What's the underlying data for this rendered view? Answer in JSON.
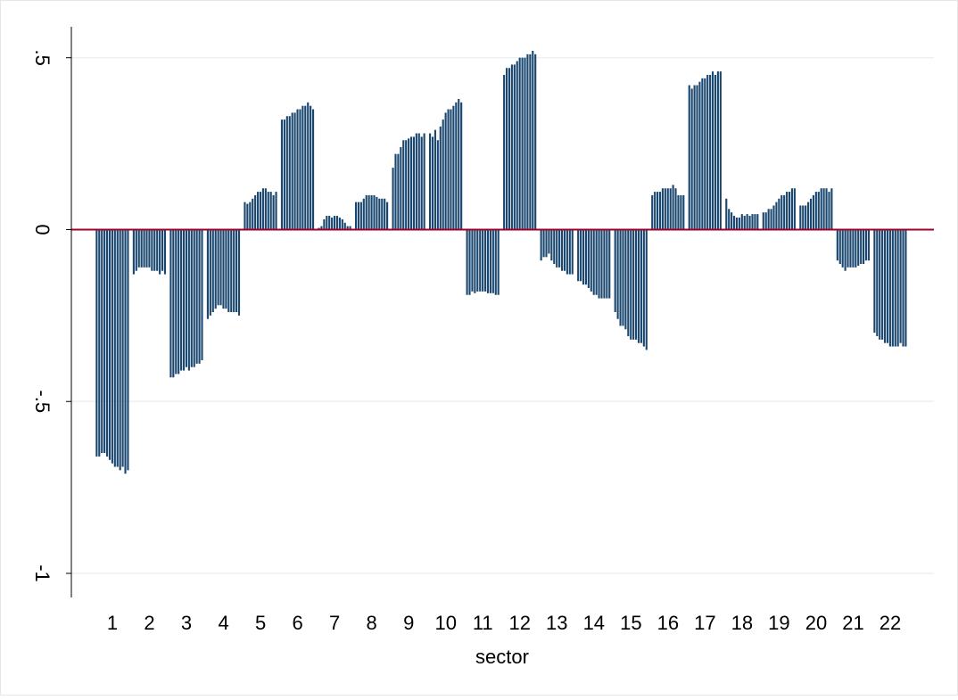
{
  "chart_data": {
    "type": "grouped_bar",
    "x_label": "sector",
    "color": "#1a476f",
    "zero_line_color": "#a0002a",
    "grid": true,
    "ylim": [
      -1.07,
      0.59
    ],
    "yticks": [
      {
        "value": 0.5,
        "label": ".5"
      },
      0,
      {
        "value": -0.5,
        "label": "-.5"
      },
      -1
    ],
    "groups": [
      {
        "label": "1",
        "values": [
          -0.66,
          -0.66,
          -0.65,
          -0.65,
          -0.66,
          -0.67,
          -0.68,
          -0.69,
          -0.69,
          -0.7,
          -0.69,
          -0.71,
          -0.7
        ]
      },
      {
        "label": "2",
        "values": [
          -0.13,
          -0.12,
          -0.11,
          -0.11,
          -0.11,
          -0.11,
          -0.11,
          -0.12,
          -0.12,
          -0.12,
          -0.13,
          -0.12,
          -0.13
        ]
      },
      {
        "label": "3",
        "values": [
          -0.43,
          -0.43,
          -0.42,
          -0.42,
          -0.41,
          -0.41,
          -0.4,
          -0.41,
          -0.4,
          -0.4,
          -0.39,
          -0.39,
          -0.38
        ]
      },
      {
        "label": "4",
        "values": [
          -0.26,
          -0.25,
          -0.24,
          -0.23,
          -0.22,
          -0.22,
          -0.23,
          -0.23,
          -0.24,
          -0.24,
          -0.24,
          -0.24,
          -0.25
        ]
      },
      {
        "label": "5",
        "values": [
          0.08,
          0.075,
          0.08,
          0.09,
          0.1,
          0.11,
          0.11,
          0.12,
          0.12,
          0.11,
          0.11,
          0.1,
          0.11
        ]
      },
      {
        "label": "6",
        "values": [
          0.32,
          0.32,
          0.33,
          0.33,
          0.34,
          0.34,
          0.35,
          0.35,
          0.36,
          0.36,
          0.37,
          0.36,
          0.35
        ]
      },
      {
        "label": "7",
        "values": [
          0.005,
          0.01,
          0.03,
          0.04,
          0.04,
          0.035,
          0.04,
          0.04,
          0.035,
          0.03,
          0.02,
          0.01,
          0.01
        ]
      },
      {
        "label": "8",
        "values": [
          0.08,
          0.08,
          0.08,
          0.09,
          0.1,
          0.1,
          0.1,
          0.1,
          0.095,
          0.09,
          0.09,
          0.09,
          0.08
        ]
      },
      {
        "label": "9",
        "values": [
          0.18,
          0.22,
          0.22,
          0.24,
          0.26,
          0.26,
          0.265,
          0.27,
          0.27,
          0.28,
          0.28,
          0.27,
          0.28
        ]
      },
      {
        "label": "10",
        "values": [
          0.28,
          0.27,
          0.29,
          0.26,
          0.3,
          0.32,
          0.34,
          0.35,
          0.35,
          0.36,
          0.37,
          0.38,
          0.37
        ]
      },
      {
        "label": "11",
        "values": [
          -0.19,
          -0.19,
          -0.18,
          -0.185,
          -0.18,
          -0.18,
          -0.18,
          -0.18,
          -0.185,
          -0.185,
          -0.185,
          -0.19,
          -0.19
        ]
      },
      {
        "label": "12",
        "values": [
          0.45,
          0.47,
          0.47,
          0.48,
          0.48,
          0.49,
          0.5,
          0.5,
          0.5,
          0.51,
          0.51,
          0.52,
          0.51
        ]
      },
      {
        "label": "13",
        "values": [
          -0.09,
          -0.08,
          -0.08,
          -0.07,
          -0.09,
          -0.1,
          -0.11,
          -0.11,
          -0.12,
          -0.12,
          -0.13,
          -0.13,
          -0.13
        ]
      },
      {
        "label": "14",
        "values": [
          -0.15,
          -0.15,
          -0.16,
          -0.16,
          -0.17,
          -0.18,
          -0.19,
          -0.19,
          -0.2,
          -0.2,
          -0.2,
          -0.2,
          -0.2
        ]
      },
      {
        "label": "15",
        "values": [
          -0.24,
          -0.26,
          -0.28,
          -0.28,
          -0.29,
          -0.31,
          -0.32,
          -0.32,
          -0.32,
          -0.33,
          -0.33,
          -0.34,
          -0.35
        ]
      },
      {
        "label": "16",
        "values": [
          0.1,
          0.11,
          0.11,
          0.11,
          0.12,
          0.12,
          0.12,
          0.12,
          0.13,
          0.12,
          0.1,
          0.1,
          0.1
        ]
      },
      {
        "label": "17",
        "values": [
          0.42,
          0.41,
          0.42,
          0.42,
          0.43,
          0.44,
          0.44,
          0.45,
          0.45,
          0.46,
          0.45,
          0.46,
          0.46
        ]
      },
      {
        "label": "18",
        "values": [
          0.09,
          0.06,
          0.05,
          0.04,
          0.035,
          0.035,
          0.045,
          0.04,
          0.045,
          0.04,
          0.045,
          0.045,
          0.045
        ]
      },
      {
        "label": "19",
        "values": [
          0.05,
          0.05,
          0.06,
          0.06,
          0.07,
          0.08,
          0.09,
          0.1,
          0.1,
          0.11,
          0.11,
          0.12,
          0.12
        ]
      },
      {
        "label": "20",
        "values": [
          0.07,
          0.07,
          0.07,
          0.08,
          0.09,
          0.1,
          0.11,
          0.11,
          0.12,
          0.12,
          0.12,
          0.11,
          0.12
        ]
      },
      {
        "label": "21",
        "values": [
          -0.09,
          -0.1,
          -0.11,
          -0.12,
          -0.11,
          -0.11,
          -0.11,
          -0.11,
          -0.105,
          -0.1,
          -0.1,
          -0.09,
          -0.09
        ]
      },
      {
        "label": "22",
        "values": [
          -0.3,
          -0.31,
          -0.32,
          -0.32,
          -0.33,
          -0.33,
          -0.34,
          -0.34,
          -0.34,
          -0.34,
          -0.33,
          -0.34,
          -0.34
        ]
      }
    ]
  }
}
